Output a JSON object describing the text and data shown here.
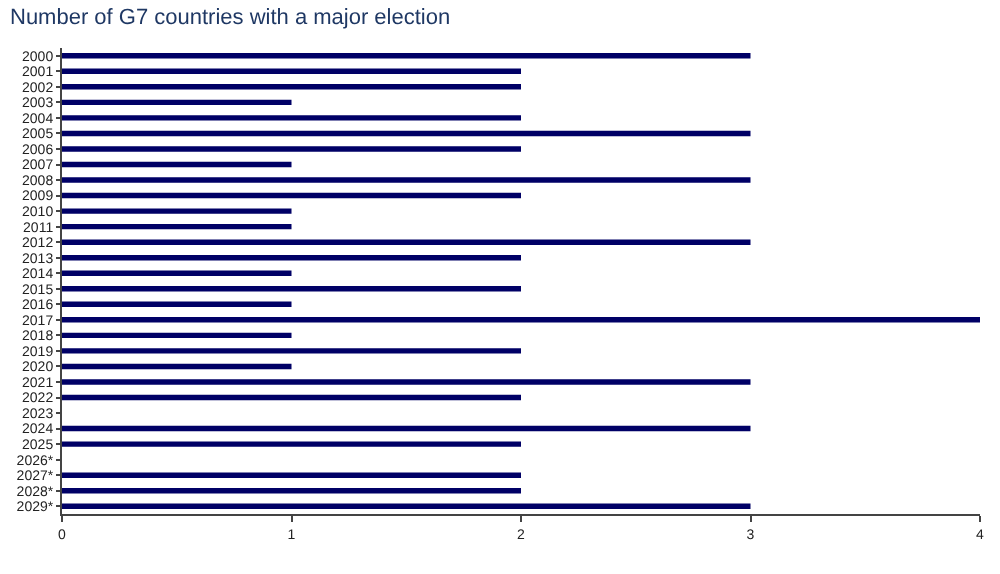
{
  "chart_data": {
    "type": "bar",
    "orientation": "horizontal",
    "title": "Number of G7 countries with a major election",
    "categories": [
      "2000",
      "2001",
      "2002",
      "2003",
      "2004",
      "2005",
      "2006",
      "2007",
      "2008",
      "2009",
      "2010",
      "2011",
      "2012",
      "2013",
      "2014",
      "2015",
      "2016",
      "2017",
      "2018",
      "2019",
      "2020",
      "2021",
      "2022",
      "2023",
      "2024",
      "2025",
      "2026*",
      "2027*",
      "2028*",
      "2029*"
    ],
    "values": [
      3,
      2,
      2,
      1,
      2,
      3,
      2,
      1,
      3,
      2,
      1,
      1,
      3,
      2,
      1,
      2,
      1,
      4,
      1,
      2,
      1,
      3,
      2,
      0,
      3,
      2,
      0,
      2,
      2,
      3
    ],
    "color": "#000066",
    "xlim": [
      0,
      4
    ],
    "xticks": [
      0,
      1,
      2,
      3,
      4
    ]
  }
}
